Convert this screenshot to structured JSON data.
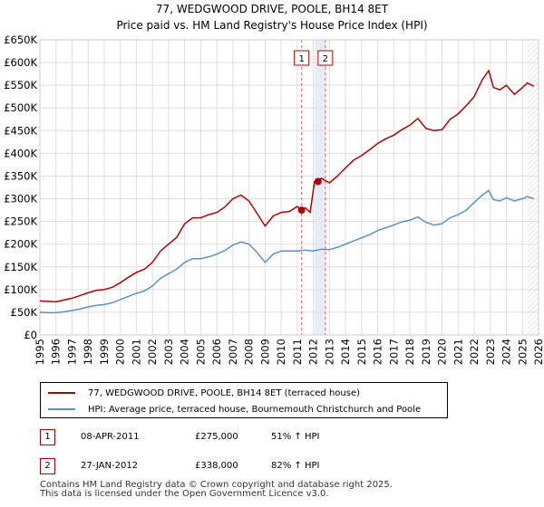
{
  "title_line1": "77, WEDGWOOD DRIVE, POOLE, BH14 8ET",
  "title_line2": "Price paid vs. HM Land Registry's House Price Index (HPI)",
  "colors": {
    "property": "#b30000",
    "hpi": "#5b8fce",
    "grid": "#dddddd",
    "band": "#dde6f3",
    "vline": "#e06060"
  },
  "chart_data": {
    "type": "line",
    "title": "Price paid vs. HM Land Registry's House Price Index (HPI)",
    "xlabel": "",
    "ylabel": "",
    "xlim": [
      1995,
      2026
    ],
    "ylim": [
      0,
      650000
    ],
    "x_ticks": [
      "1995",
      "1996",
      "1997",
      "1998",
      "1999",
      "2000",
      "2001",
      "2002",
      "2003",
      "2004",
      "2005",
      "2006",
      "2007",
      "2008",
      "2009",
      "2010",
      "2011",
      "2012",
      "2013",
      "2014",
      "2015",
      "2016",
      "2017",
      "2018",
      "2019",
      "2020",
      "2021",
      "2022",
      "2023",
      "2024",
      "2025",
      "2026"
    ],
    "y_ticks": [
      {
        "value": 0,
        "label": "£0"
      },
      {
        "value": 50000,
        "label": "£50K"
      },
      {
        "value": 100000,
        "label": "£100K"
      },
      {
        "value": 150000,
        "label": "£150K"
      },
      {
        "value": 200000,
        "label": "£200K"
      },
      {
        "value": 250000,
        "label": "£250K"
      },
      {
        "value": 300000,
        "label": "£300K"
      },
      {
        "value": 350000,
        "label": "£350K"
      },
      {
        "value": 400000,
        "label": "£400K"
      },
      {
        "value": 450000,
        "label": "£450K"
      },
      {
        "value": 500000,
        "label": "£500K"
      },
      {
        "value": 550000,
        "label": "£550K"
      },
      {
        "value": 600000,
        "label": "£600K"
      },
      {
        "value": 650000,
        "label": "£650K"
      }
    ],
    "series": [
      {
        "name": "77, WEDGWOOD DRIVE, POOLE, BH14 8ET (terraced house)",
        "color": "#b30000",
        "x": [
          1995,
          1995.5,
          1996,
          1996.5,
          1997,
          1997.5,
          1998,
          1998.5,
          1999,
          1999.5,
          2000,
          2000.5,
          2001,
          2001.5,
          2002,
          2002.5,
          2003,
          2003.5,
          2004,
          2004.5,
          2005,
          2005.5,
          2006,
          2006.5,
          2007,
          2007.5,
          2008,
          2008.5,
          2009,
          2009.5,
          2010,
          2010.5,
          2011.0,
          2011.27,
          2011.5,
          2011.8,
          2012.07,
          2012.5,
          2013,
          2013.5,
          2014,
          2014.5,
          2015,
          2015.5,
          2016,
          2016.5,
          2017,
          2017.5,
          2018,
          2018.5,
          2019,
          2019.5,
          2020,
          2020.5,
          2021,
          2021.5,
          2022,
          2022.5,
          2022.9,
          2023.2,
          2023.6,
          2024,
          2024.5,
          2025,
          2025.3,
          2025.7
        ],
        "y": [
          75000,
          74000,
          73000,
          77000,
          81000,
          87000,
          93000,
          98000,
          100000,
          105000,
          115000,
          127000,
          138000,
          145000,
          160000,
          185000,
          200000,
          215000,
          245000,
          258000,
          258000,
          265000,
          270000,
          282000,
          300000,
          308000,
          295000,
          268000,
          240000,
          262000,
          270000,
          272000,
          283000,
          275000,
          280000,
          270000,
          338000,
          345000,
          335000,
          350000,
          368000,
          385000,
          395000,
          408000,
          422000,
          432000,
          440000,
          452000,
          462000,
          477000,
          455000,
          450000,
          452000,
          475000,
          487000,
          505000,
          525000,
          562000,
          582000,
          545000,
          540000,
          550000,
          530000,
          545000,
          555000,
          548000
        ]
      },
      {
        "name": "HPI: Average price, terraced house, Bournemouth Christchurch and Poole",
        "color": "#5b8fce",
        "x": [
          1995,
          1995.5,
          1996,
          1996.5,
          1997,
          1997.5,
          1998,
          1998.5,
          1999,
          1999.5,
          2000,
          2000.5,
          2001,
          2001.5,
          2002,
          2002.5,
          2003,
          2003.5,
          2004,
          2004.5,
          2005,
          2005.5,
          2006,
          2006.5,
          2007,
          2007.5,
          2008,
          2008.5,
          2009,
          2009.5,
          2010,
          2010.5,
          2011,
          2011.5,
          2012,
          2012.5,
          2013,
          2013.5,
          2014,
          2014.5,
          2015,
          2015.5,
          2016,
          2016.5,
          2017,
          2017.5,
          2018,
          2018.5,
          2019,
          2019.5,
          2020,
          2020.5,
          2021,
          2021.5,
          2022,
          2022.5,
          2022.9,
          2023.2,
          2023.6,
          2024,
          2024.5,
          2025,
          2025.3,
          2025.7
        ],
        "y": [
          50000,
          49000,
          49000,
          51000,
          54000,
          57000,
          62000,
          65000,
          67000,
          71000,
          78000,
          85000,
          92000,
          97000,
          108000,
          125000,
          135000,
          145000,
          160000,
          168000,
          168000,
          172000,
          178000,
          186000,
          198000,
          205000,
          200000,
          182000,
          160000,
          178000,
          185000,
          185000,
          185000,
          187000,
          185000,
          189000,
          188000,
          193000,
          200000,
          207000,
          214000,
          221000,
          230000,
          236000,
          242000,
          249000,
          253000,
          260000,
          248000,
          242000,
          245000,
          258000,
          265000,
          275000,
          292000,
          308000,
          318000,
          298000,
          295000,
          302000,
          295000,
          300000,
          305000,
          300000
        ]
      }
    ],
    "vlines": [
      2011.27,
      2012.07
    ],
    "band": [
      2012.07,
      2012.12
    ],
    "forecast_start": 2025.3,
    "sale_points": [
      {
        "label": "1",
        "x": 2011.27,
        "y": 275000
      },
      {
        "label": "2",
        "x": 2012.07,
        "y": 338000
      }
    ]
  },
  "legend": {
    "property_label": "77, WEDGWOOD DRIVE, POOLE, BH14 8ET (terraced house)",
    "hpi_label": "HPI: Average price, terraced house, Bournemouth Christchurch and Poole"
  },
  "transactions": [
    {
      "num": "1",
      "date": "08-APR-2011",
      "price": "£275,000",
      "hpi": "51% ↑ HPI"
    },
    {
      "num": "2",
      "date": "27-JAN-2012",
      "price": "£338,000",
      "hpi": "82% ↑ HPI"
    }
  ],
  "footer": {
    "line1": "Contains HM Land Registry data © Crown copyright and database right 2025.",
    "line2": "This data is licensed under the Open Government Licence v3.0."
  }
}
